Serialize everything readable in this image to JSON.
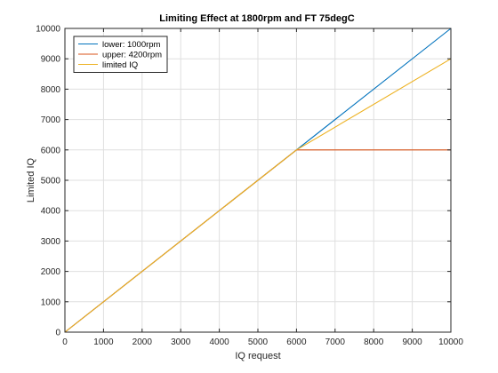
{
  "chart_data": {
    "type": "line",
    "title": "Limiting Effect at 1800rpm and FT 75degC",
    "xlabel": "IQ request",
    "ylabel": "Limited IQ",
    "xlim": [
      0,
      10000
    ],
    "ylim": [
      0,
      10000
    ],
    "xticks": [
      0,
      1000,
      2000,
      3000,
      4000,
      5000,
      6000,
      7000,
      8000,
      9000,
      10000
    ],
    "yticks": [
      0,
      1000,
      2000,
      3000,
      4000,
      5000,
      6000,
      7000,
      8000,
      9000,
      10000
    ],
    "grid": true,
    "legend_position": "top-left",
    "series": [
      {
        "name": "lower: 1000rpm",
        "color": "#0072BD",
        "x": [
          0,
          10000
        ],
        "y": [
          0,
          10000
        ]
      },
      {
        "name": "upper: 4200rpm",
        "color": "#D95319",
        "x": [
          0,
          6000,
          10000
        ],
        "y": [
          0,
          6000,
          6000
        ]
      },
      {
        "name": "limited IQ",
        "color": "#EDB120",
        "x": [
          0,
          6000,
          10000
        ],
        "y": [
          0,
          6000,
          9000
        ]
      }
    ]
  }
}
